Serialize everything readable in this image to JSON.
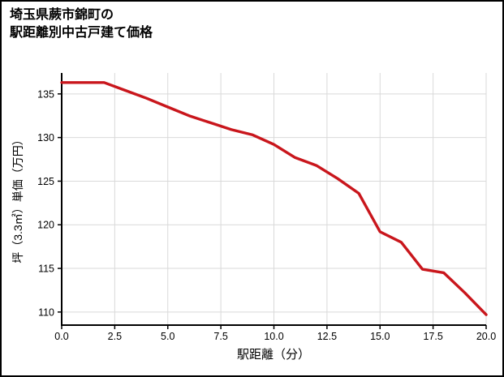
{
  "chart_data": {
    "type": "line",
    "title": "埼玉県蕨市錦町の駅距離別中古戸建て価格",
    "title_lines": [
      "埼玉県蕨市錦町の",
      "駅距離別中古戸建て価格"
    ],
    "xlabel": "駅距離（分）",
    "ylabel": "坪（3.3㎡）単価（万円）",
    "x": [
      0,
      1,
      2,
      3,
      4,
      5,
      6,
      7,
      8,
      9,
      10,
      11,
      12,
      13,
      14,
      15,
      16,
      17,
      18,
      19,
      20
    ],
    "y": [
      136.3,
      136.3,
      136.3,
      135.4,
      134.5,
      133.5,
      132.5,
      131.7,
      130.9,
      130.3,
      129.2,
      127.7,
      126.8,
      125.3,
      123.6,
      119.2,
      118.0,
      114.9,
      114.5,
      112.2,
      109.7
    ],
    "xlim": [
      0,
      20
    ],
    "ylim": [
      108.5,
      137.4
    ],
    "xticks": [
      0,
      2.5,
      5,
      7.5,
      10,
      12.5,
      15,
      17.5,
      20
    ],
    "xtick_labels": [
      "0.0",
      "2.5",
      "5.0",
      "7.5",
      "10.0",
      "12.5",
      "15.0",
      "17.5",
      "20.0"
    ],
    "yticks": [
      110,
      115,
      120,
      125,
      130,
      135
    ],
    "ytick_labels": [
      "110",
      "115",
      "120",
      "125",
      "130",
      "135"
    ],
    "line_color": "#c9161c",
    "grid": true,
    "grid_color": "#d9d9d9",
    "axis_color": "#000000",
    "legend": "none"
  }
}
